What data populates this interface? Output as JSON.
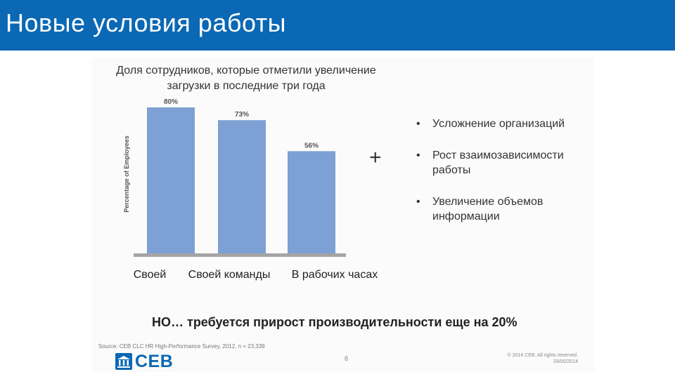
{
  "slide_title": "Новые условия работы",
  "chart_data": {
    "type": "bar",
    "title": "Доля сотрудников, которые отметили увеличение загрузки в последние три года",
    "ylabel": "Percentage of Employees",
    "xlabel": "",
    "categories": [
      "Своей",
      "Своей команды",
      "В рабочих часах"
    ],
    "values": [
      80,
      73,
      56
    ],
    "data_labels": [
      "80%",
      "73%",
      "56%"
    ],
    "ylim": [
      0,
      100
    ],
    "grid": false,
    "bar_color": "#7da1d4",
    "axis_color": "#a5a5a5"
  },
  "plus_sign": "+",
  "bullets": [
    "Усложнение организаций",
    "Рост взаимозависимости работы",
    "Увеличение объемов информации"
  ],
  "bullet_symbol": "•",
  "bottom_note": "НО… требуется прирост производительности еще на 20%",
  "source": "Source: CEB CLC HR High-Performance Survey, 2012, n = 23,339",
  "page_number": "8",
  "copyright_line1": "© 2014 CEB. All rights reserved.",
  "copyright_line2": "33/00/2014",
  "logo_text": "CEB",
  "colors": {
    "brand": "#0a68b4"
  }
}
